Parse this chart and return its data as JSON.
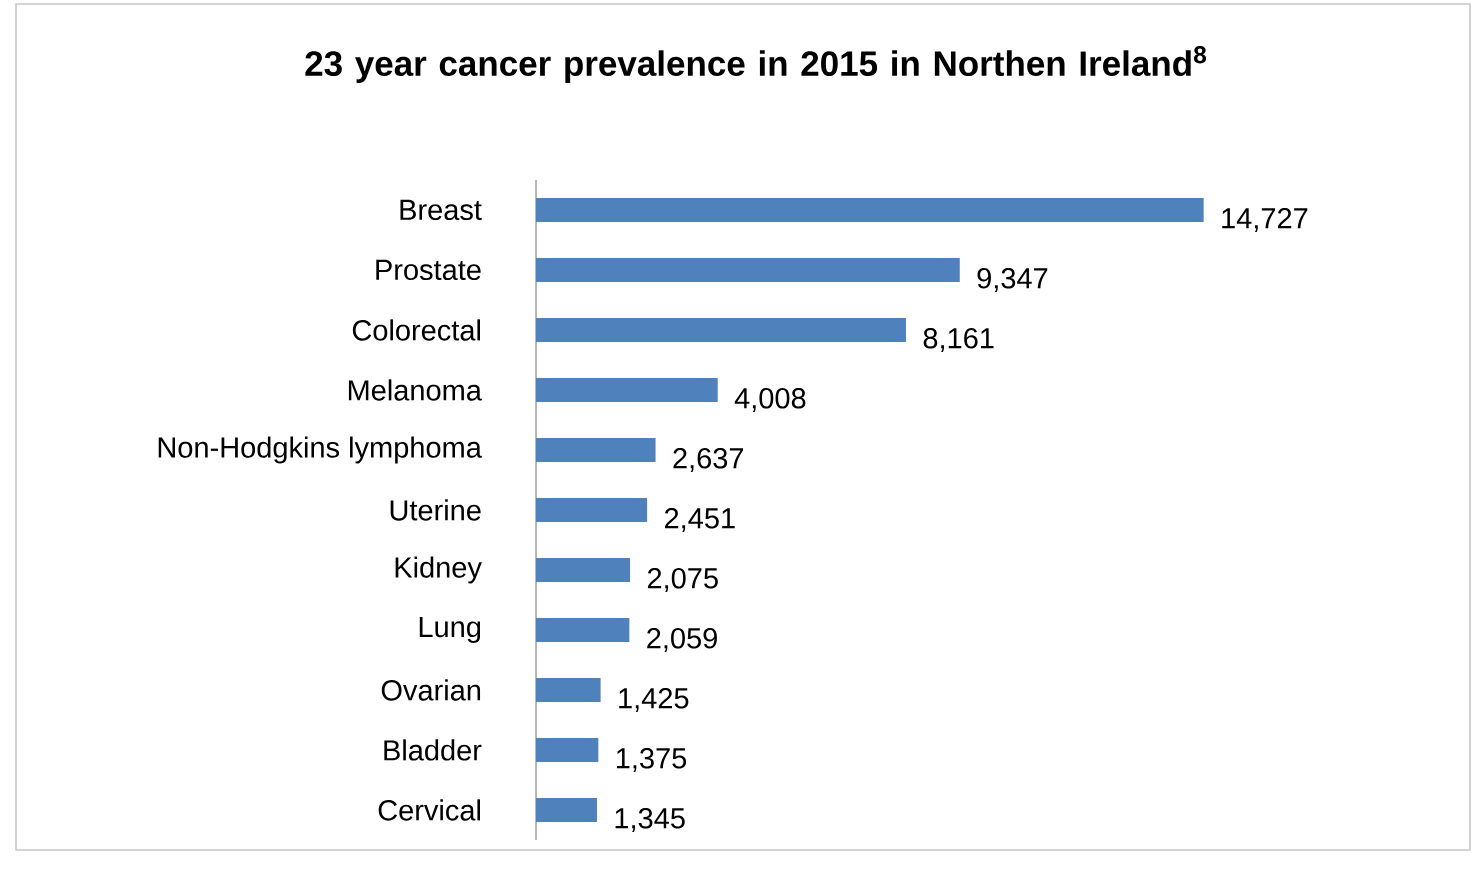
{
  "chart_data": {
    "type": "bar",
    "orientation": "horizontal",
    "title": "23 year cancer prevalence in 2015 in Northen Ireland$^{8}$",
    "categories": [
      "Breast",
      "Prostate",
      "Colorectal",
      "Melanoma",
      "Non-Hodgkins lymphoma",
      "Uterine",
      "Kidney",
      "Lung",
      "Ovarian",
      "Bladder",
      "Cervical"
    ],
    "values": [
      14727,
      9347,
      8161,
      4008,
      2637,
      2451,
      2075,
      2059,
      1425,
      1375,
      1345
    ],
    "value_labels": [
      "14,727",
      "9,347",
      "8,161",
      "4,008",
      "2,637",
      "2,451",
      "2,075",
      "2,059",
      "1,425",
      "1,375",
      "1,345"
    ],
    "color": "#4f81bd"
  }
}
